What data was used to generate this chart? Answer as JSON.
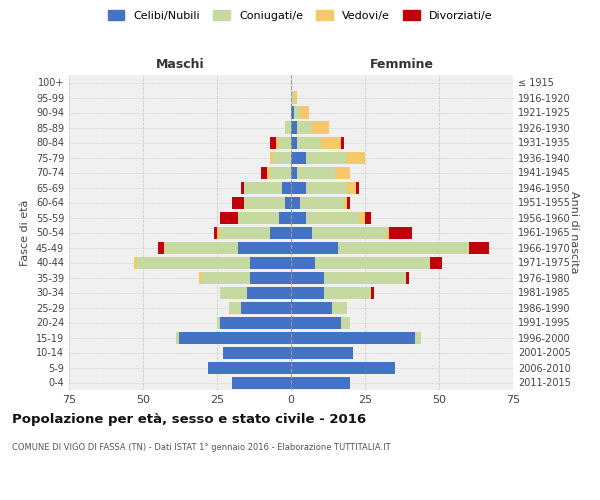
{
  "age_groups": [
    "0-4",
    "5-9",
    "10-14",
    "15-19",
    "20-24",
    "25-29",
    "30-34",
    "35-39",
    "40-44",
    "45-49",
    "50-54",
    "55-59",
    "60-64",
    "65-69",
    "70-74",
    "75-79",
    "80-84",
    "85-89",
    "90-94",
    "95-99",
    "100+"
  ],
  "birth_years": [
    "2011-2015",
    "2006-2010",
    "2001-2005",
    "1996-2000",
    "1991-1995",
    "1986-1990",
    "1981-1985",
    "1976-1980",
    "1971-1975",
    "1966-1970",
    "1961-1965",
    "1956-1960",
    "1951-1955",
    "1946-1950",
    "1941-1945",
    "1936-1940",
    "1931-1935",
    "1926-1930",
    "1921-1925",
    "1916-1920",
    "≤ 1915"
  ],
  "male": {
    "celibe": [
      20,
      28,
      23,
      38,
      24,
      17,
      15,
      14,
      14,
      18,
      7,
      4,
      2,
      3,
      0,
      0,
      0,
      0,
      0,
      0,
      0
    ],
    "coniugato": [
      0,
      0,
      0,
      1,
      1,
      4,
      9,
      16,
      38,
      25,
      17,
      14,
      14,
      13,
      7,
      6,
      4,
      2,
      0,
      0,
      0
    ],
    "vedovo": [
      0,
      0,
      0,
      0,
      0,
      0,
      0,
      1,
      1,
      0,
      1,
      0,
      0,
      0,
      1,
      1,
      1,
      0,
      0,
      0,
      0
    ],
    "divorziato": [
      0,
      0,
      0,
      0,
      0,
      0,
      0,
      0,
      0,
      2,
      1,
      6,
      4,
      1,
      2,
      0,
      2,
      0,
      0,
      0,
      0
    ]
  },
  "female": {
    "nubile": [
      20,
      35,
      21,
      42,
      17,
      14,
      11,
      11,
      8,
      16,
      7,
      5,
      3,
      5,
      2,
      5,
      2,
      2,
      1,
      0,
      0
    ],
    "coniugata": [
      0,
      0,
      0,
      2,
      3,
      5,
      16,
      28,
      39,
      44,
      25,
      18,
      15,
      14,
      13,
      14,
      8,
      5,
      2,
      1,
      0
    ],
    "vedova": [
      0,
      0,
      0,
      0,
      0,
      0,
      0,
      0,
      0,
      0,
      1,
      2,
      1,
      3,
      5,
      6,
      7,
      6,
      3,
      1,
      0
    ],
    "divorziata": [
      0,
      0,
      0,
      0,
      0,
      0,
      1,
      1,
      4,
      7,
      8,
      2,
      1,
      1,
      0,
      0,
      1,
      0,
      0,
      0,
      0
    ]
  },
  "color_celibe": "#4472C4",
  "color_coniugato": "#C6D9A0",
  "color_vedovo": "#F5C96A",
  "color_divorziato": "#C0000C",
  "xlim": 75,
  "title": "Popolazione per età, sesso e stato civile - 2016",
  "subtitle": "COMUNE DI VIGO DI FASSA (TN) - Dati ISTAT 1° gennaio 2016 - Elaborazione TUTTITALIA.IT",
  "ylabel_left": "Fasce di età",
  "ylabel_right": "Anni di nascita",
  "bg_color": "#f0f0f0",
  "grid_color": "#cccccc"
}
